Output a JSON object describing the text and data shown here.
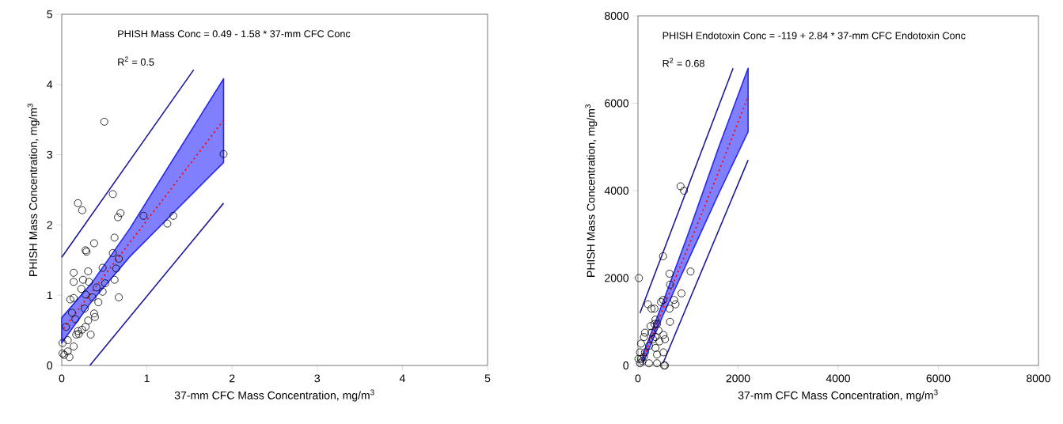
{
  "chart_data": [
    {
      "type": "scatter",
      "xlabel": "37-mm CFC Mass Concentration, mg/m$^{3}$",
      "ylabel": "PHISH Mass Concentration, mg/m$^{3}$",
      "annotations": [
        "PHISH Mass Conc = 0.49 - 1.58 * 37-mm CFC Conc",
        "R$^{2}$ = 0.5"
      ],
      "xlim": [
        0,
        5
      ],
      "ylim": [
        0,
        5
      ],
      "xticks": [
        0,
        1,
        2,
        3,
        4,
        5
      ],
      "yticks": [
        0,
        1,
        2,
        3,
        4,
        5
      ],
      "grid": false,
      "series": [
        {
          "marker": "circle",
          "color": "#000000",
          "x": [
            0.19,
            0.24,
            0.69,
            0.66,
            0.96,
            1.31,
            1.24,
            0.62,
            0.38,
            0.28,
            0.29,
            0.6,
            0.67,
            0.48,
            0.64,
            0.14,
            0.31,
            0.14,
            0.25,
            0.32,
            0.51,
            0.62,
            0.41,
            0.23,
            0.28,
            0.48,
            0.1,
            0.14,
            0.67,
            0.43,
            0.36,
            0.12,
            0.38,
            0.39,
            0.27,
            0.05,
            0.16,
            0.19,
            0.2,
            0.17,
            0.24,
            0.28,
            0.31,
            0.34,
            0.01,
            0.07,
            0.14,
            0.01,
            0.07,
            0.09,
            0.03,
            0.5,
            1.9,
            0.6
          ],
          "values": [
            2.31,
            2.21,
            2.17,
            2.11,
            2.13,
            2.13,
            2.02,
            1.82,
            1.74,
            1.64,
            1.62,
            1.6,
            1.52,
            1.39,
            1.38,
            1.32,
            1.34,
            1.19,
            1.22,
            1.19,
            1.17,
            1.22,
            1.11,
            1.09,
            1.01,
            1.05,
            0.94,
            0.96,
            0.97,
            0.9,
            0.97,
            0.75,
            0.74,
            0.69,
            0.81,
            0.55,
            0.66,
            0.49,
            0.45,
            0.44,
            0.51,
            0.55,
            0.64,
            0.44,
            0.32,
            0.36,
            0.27,
            0.17,
            0.2,
            0.12,
            0.15,
            3.47,
            3.01,
            2.44
          ]
        },
        {
          "type": "line",
          "color": "#ff0000",
          "line_style": "dotted",
          "x": [
            0,
            0.35,
            0.8,
            1.3,
            1.9
          ],
          "values": [
            0.49,
            1.04,
            1.75,
            2.54,
            3.49
          ],
          "lower": [
            0.32,
            0.91,
            1.55,
            2.16,
            2.89
          ],
          "upper": [
            0.68,
            1.17,
            1.95,
            2.92,
            4.08
          ]
        },
        {
          "type": "line",
          "color": "#1a1a9a",
          "line_style": "solid",
          "x": [
            0,
            1.55
          ],
          "values": [
            1.54,
            4.21
          ]
        },
        {
          "type": "line",
          "color": "#1a1a9a",
          "line_style": "solid",
          "x": [
            0.33,
            1.9
          ],
          "values": [
            0,
            2.31
          ]
        }
      ]
    },
    {
      "type": "scatter",
      "xlabel": "37-mm CFC Mass Concentration, mg/m$^{3}$",
      "ylabel": "PHISH Mass Concentration, mg/m$^{3}$",
      "annotations": [
        "PHISH Endotoxin Conc = -119 + 2.84 * 37-mm CFC Endotoxin Conc",
        "R$^{2}$ = 0.68"
      ],
      "xlim": [
        0,
        8000
      ],
      "ylim": [
        0,
        8000
      ],
      "xticks": [
        0,
        2000,
        4000,
        6000,
        8000
      ],
      "yticks": [
        0,
        2000,
        4000,
        6000,
        8000
      ],
      "grid": false,
      "series": [
        {
          "marker": "circle",
          "color": "#000000",
          "x": [
            850,
            920,
            500,
            20,
            1050,
            630,
            640,
            870,
            500,
            460,
            720,
            750,
            200,
            270,
            330,
            630,
            640,
            350,
            380,
            250,
            140,
            410,
            510,
            540,
            120,
            300,
            430,
            60,
            220,
            350,
            510,
            40,
            140,
            380,
            10,
            60,
            220,
            380,
            540,
            40,
            90,
            120,
            270,
            330,
            350,
            520
          ],
          "values": [
            4100,
            4000,
            2500,
            2000,
            2150,
            2100,
            1850,
            1650,
            1500,
            1450,
            1500,
            1400,
            1400,
            1300,
            1300,
            1300,
            1000,
            1050,
            950,
            900,
            750,
            800,
            700,
            600,
            650,
            600,
            550,
            500,
            450,
            400,
            300,
            300,
            300,
            250,
            150,
            150,
            50,
            50,
            0,
            50,
            100,
            200,
            750,
            950,
            650,
            0
          ]
        },
        {
          "type": "line",
          "color": "#ff0000",
          "line_style": "dotted",
          "x": [
            100,
            500,
            1000,
            1600,
            2200
          ],
          "values": [
            150,
            1300,
            2700,
            4400,
            6150
          ],
          "lower": [
            50,
            1150,
            2400,
            3900,
            5350
          ],
          "upper": [
            250,
            1450,
            3000,
            4950,
            6800
          ]
        },
        {
          "type": "line",
          "color": "#1a1a9a",
          "line_style": "solid",
          "x": [
            40,
            1900
          ],
          "values": [
            1200,
            6800
          ]
        },
        {
          "type": "line",
          "color": "#1a1a9a",
          "line_style": "solid",
          "x": [
            500,
            2200
          ],
          "values": [
            50,
            4700
          ]
        }
      ]
    }
  ]
}
